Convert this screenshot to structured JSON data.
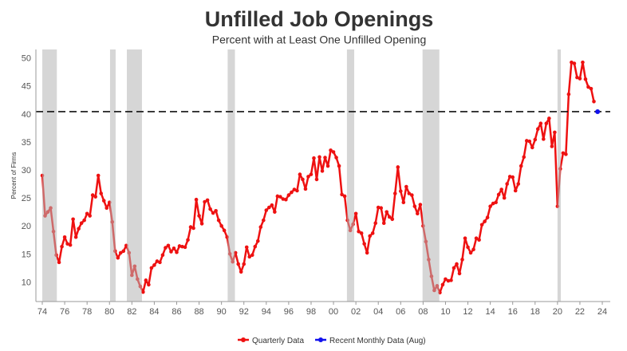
{
  "chart_data": {
    "type": "line",
    "title": "Unfilled Job Openings",
    "subtitle": "Percent with at Least One Unfilled Opening",
    "y_label": "Percent of Firms",
    "xlim": [
      1973.43,
      2024.71
    ],
    "ylim": [
      6.5,
      51.5
    ],
    "yticks": [
      10,
      15,
      20,
      25,
      30,
      35,
      40,
      45,
      50
    ],
    "xticks": [
      {
        "value": 1974,
        "label": "74"
      },
      {
        "value": 1976,
        "label": "76"
      },
      {
        "value": 1978,
        "label": "78"
      },
      {
        "value": 1980,
        "label": "80"
      },
      {
        "value": 1982,
        "label": "82"
      },
      {
        "value": 1984,
        "label": "84"
      },
      {
        "value": 1986,
        "label": "86"
      },
      {
        "value": 1988,
        "label": "88"
      },
      {
        "value": 1990,
        "label": "90"
      },
      {
        "value": 1992,
        "label": "92"
      },
      {
        "value": 1994,
        "label": "94"
      },
      {
        "value": 1996,
        "label": "96"
      },
      {
        "value": 1998,
        "label": "98"
      },
      {
        "value": 2000,
        "label": "00"
      },
      {
        "value": 2002,
        "label": "02"
      },
      {
        "value": 2004,
        "label": "04"
      },
      {
        "value": 2006,
        "label": "06"
      },
      {
        "value": 2008,
        "label": "08"
      },
      {
        "value": 2010,
        "label": "10"
      },
      {
        "value": 2012,
        "label": "12"
      },
      {
        "value": 2014,
        "label": "14"
      },
      {
        "value": 2016,
        "label": "16"
      },
      {
        "value": 2018,
        "label": "18"
      },
      {
        "value": 2020,
        "label": "20"
      },
      {
        "value": 2022,
        "label": "22"
      },
      {
        "value": 2024,
        "label": "24"
      }
    ],
    "grid": true,
    "hline": 40.4,
    "shaded_ranges": [
      [
        1974.0,
        1975.3
      ],
      [
        1980.05,
        1980.55
      ],
      [
        1981.55,
        1982.9
      ],
      [
        1990.55,
        1991.2
      ],
      [
        2001.2,
        2001.85
      ],
      [
        2007.95,
        2009.45
      ],
      [
        2020.0,
        2020.3
      ]
    ],
    "x": [
      1974,
      1974.25,
      1974.5,
      1974.75,
      1975,
      1975.25,
      1975.5,
      1975.75,
      1976,
      1976.25,
      1976.5,
      1976.75,
      1977,
      1977.25,
      1977.5,
      1977.75,
      1978,
      1978.25,
      1978.5,
      1978.75,
      1979,
      1979.25,
      1979.5,
      1979.75,
      1980,
      1980.25,
      1980.5,
      1980.75,
      1981,
      1981.25,
      1981.5,
      1981.75,
      1982,
      1982.25,
      1982.5,
      1982.75,
      1983,
      1983.25,
      1983.5,
      1983.75,
      1984,
      1984.25,
      1984.5,
      1984.75,
      1985,
      1985.25,
      1985.5,
      1985.75,
      1986,
      1986.25,
      1986.5,
      1986.75,
      1987,
      1987.25,
      1987.5,
      1987.75,
      1988,
      1988.25,
      1988.5,
      1988.75,
      1989,
      1989.25,
      1989.5,
      1989.75,
      1990,
      1990.25,
      1990.5,
      1990.75,
      1991,
      1991.25,
      1991.5,
      1991.75,
      1992,
      1992.25,
      1992.5,
      1992.75,
      1993,
      1993.25,
      1993.5,
      1993.75,
      1994,
      1994.25,
      1994.5,
      1994.75,
      1995,
      1995.25,
      1995.5,
      1995.75,
      1996,
      1996.25,
      1996.5,
      1996.75,
      1997,
      1997.25,
      1997.5,
      1997.75,
      1998,
      1998.25,
      1998.5,
      1998.75,
      1999,
      1999.25,
      1999.5,
      1999.75,
      2000,
      2000.25,
      2000.5,
      2000.75,
      2001,
      2001.25,
      2001.5,
      2001.75,
      2002,
      2002.25,
      2002.5,
      2002.75,
      2003,
      2003.25,
      2003.5,
      2003.75,
      2004,
      2004.25,
      2004.5,
      2004.75,
      2005,
      2005.25,
      2005.5,
      2005.75,
      2006,
      2006.25,
      2006.5,
      2006.75,
      2007,
      2007.25,
      2007.5,
      2007.75,
      2008,
      2008.25,
      2008.5,
      2008.75,
      2009,
      2009.25,
      2009.5,
      2009.75,
      2010,
      2010.25,
      2010.5,
      2010.75,
      2011,
      2011.25,
      2011.5,
      2011.75,
      2012,
      2012.25,
      2012.5,
      2012.75,
      2013,
      2013.25,
      2013.5,
      2013.75,
      2014,
      2014.25,
      2014.5,
      2014.75,
      2015,
      2015.25,
      2015.5,
      2015.75,
      2016,
      2016.25,
      2016.5,
      2016.75,
      2017,
      2017.25,
      2017.5,
      2017.75,
      2018,
      2018.25,
      2018.5,
      2018.75,
      2019,
      2019.25,
      2019.5,
      2019.75,
      2020,
      2020.25,
      2020.5,
      2020.75,
      2021,
      2021.25,
      2021.5,
      2021.75,
      2022,
      2022.25,
      2022.5,
      2022.75,
      2023,
      2023.25
    ],
    "series": [
      {
        "name": "Quarterly Data",
        "color": "#ee1111",
        "values": [
          29,
          21.8,
          22.5,
          23.2,
          19,
          14.8,
          13.5,
          16.3,
          18,
          16.8,
          16.6,
          21.2,
          18,
          19.5,
          20.5,
          21,
          22.2,
          21.8,
          25.5,
          25.2,
          29,
          25.8,
          24.5,
          23.2,
          24.2,
          20.7,
          15.5,
          14.3,
          15.2,
          15.5,
          16.5,
          15.2,
          11.2,
          12.8,
          10.5,
          9.2,
          8.2,
          10.3,
          9.5,
          12.5,
          13,
          13.7,
          13.5,
          14.8,
          16.1,
          16.5,
          15.4,
          16,
          15.3,
          16.4,
          16.3,
          16.2,
          17.5,
          19.8,
          19.6,
          24.7,
          21.8,
          20.4,
          24.3,
          24.6,
          23,
          22.3,
          22.7,
          21,
          20,
          19.2,
          18,
          15,
          13.6,
          15.2,
          13.2,
          11.8,
          13.2,
          16.2,
          14.5,
          14.8,
          16.3,
          17.3,
          19.8,
          21,
          22.8,
          23.3,
          23.7,
          22.5,
          25.3,
          25.2,
          24.8,
          24.7,
          25.5,
          26,
          26.5,
          26.3,
          29.2,
          28.3,
          26.6,
          28.8,
          29.2,
          32.1,
          28.3,
          32.3,
          29.8,
          32.2,
          30.7,
          33.5,
          33.2,
          32.2,
          30.7,
          25.6,
          25.3,
          21,
          19.2,
          20.3,
          22.2,
          19,
          18.7,
          16.8,
          15.2,
          18.2,
          18.7,
          20.5,
          23.3,
          23.2,
          20.5,
          22.5,
          21.6,
          21.2,
          25.8,
          30.5,
          26.2,
          24.2,
          27,
          25.8,
          25.5,
          23.5,
          22.2,
          23.8,
          20,
          17.2,
          14,
          11,
          8.5,
          9.3,
          8.1,
          9.5,
          10.5,
          10.2,
          10.3,
          12.5,
          13.2,
          11.5,
          14,
          17.8,
          16.2,
          15.2,
          15.8,
          17.8,
          17.5,
          20.2,
          20.8,
          21.5,
          23.5,
          24,
          24.2,
          25.6,
          26.5,
          25,
          27.5,
          28.8,
          28.7,
          26.3,
          27.5,
          30.7,
          32.3,
          35.2,
          35.1,
          34,
          35.4,
          37.3,
          38.3,
          35.5,
          38.3,
          39.2,
          34.2,
          36.7,
          23.5,
          30.2,
          33,
          32.8,
          43.5,
          49.2,
          49,
          46.5,
          46.3,
          49.2,
          46.2,
          44.8,
          44.5,
          42.2
        ]
      },
      {
        "name": "Recent Monthly Data (Aug)",
        "color": "#1111ee",
        "x": [
          2023.58
        ],
        "values": [
          40.4
        ]
      }
    ]
  }
}
